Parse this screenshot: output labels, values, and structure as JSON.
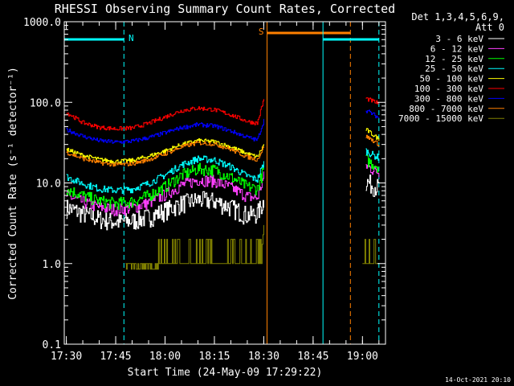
{
  "chart_data": {
    "type": "line",
    "title": "RHESSI Observing Summary Count Rates, Corrected",
    "xlabel": "Start Time (24-May-09 17:29:22)",
    "ylabel": "Corrected Count Rate (s⁻¹ detector⁻¹)",
    "x_scale": "time",
    "y_scale": "log",
    "xlim": [
      "17:29:22",
      "19:07:00"
    ],
    "ylim": [
      0.1,
      1000
    ],
    "x_ticks": [
      "17:30",
      "17:45",
      "18:00",
      "18:15",
      "18:30",
      "18:45",
      "19:00"
    ],
    "y_ticks": [
      "0.1",
      "1.0",
      "10.0",
      "100.0",
      "1000.0"
    ],
    "legend_title": [
      "Det 1,3,4,5,6,9,",
      "Att 0"
    ],
    "legend_position": "top-right outside",
    "grid": false,
    "footer": "14-Oct-2021 20:10",
    "flags": [
      {
        "label": "N",
        "kind": "night",
        "start": "17:29:22",
        "end": "17:47:30",
        "color": "#00ffff"
      },
      {
        "label": "S",
        "kind": "saa",
        "start": "18:31:00",
        "end": "18:56:20",
        "color": "#ff8000"
      },
      {
        "label": "",
        "kind": "night",
        "start": "18:48:00",
        "end": "19:05:00",
        "color": "#00ffff"
      }
    ],
    "series": [
      {
        "name": "3 - 6 keV",
        "color": "#ffffff",
        "seg1": {
          "t": [
            "17:30",
            "17:35",
            "17:40",
            "17:45",
            "17:50",
            "17:55",
            "18:00",
            "18:05",
            "18:10",
            "18:15",
            "18:20",
            "18:25",
            "18:28",
            "18:30"
          ],
          "v": [
            5.0,
            4.2,
            3.6,
            3.3,
            3.4,
            3.8,
            4.6,
            5.6,
            6.2,
            6.0,
            5.0,
            4.0,
            4.2,
            6.0
          ]
        },
        "seg2": {
          "t": [
            "19:01",
            "19:03",
            "19:05"
          ],
          "v": [
            10.5,
            9.5,
            8.8
          ]
        }
      },
      {
        "name": "6 - 12 keV",
        "color": "#ff40ff",
        "seg1": {
          "t": [
            "17:30",
            "17:35",
            "17:40",
            "17:45",
            "17:50",
            "17:55",
            "18:00",
            "18:05",
            "18:10",
            "18:15",
            "18:20",
            "18:25",
            "18:28",
            "18:30"
          ],
          "v": [
            7.0,
            5.8,
            5.0,
            4.7,
            4.9,
            5.7,
            7.2,
            9.4,
            11.0,
            10.6,
            8.8,
            6.8,
            6.5,
            12.0
          ]
        },
        "seg2": {
          "t": [
            "19:01",
            "19:03",
            "19:05"
          ],
          "v": [
            16.5,
            14.8,
            13.5
          ]
        }
      },
      {
        "name": "12 - 25 keV",
        "color": "#00ff00",
        "seg1": {
          "t": [
            "17:30",
            "17:35",
            "17:40",
            "17:45",
            "17:50",
            "17:55",
            "18:00",
            "18:05",
            "18:10",
            "18:15",
            "18:20",
            "18:25",
            "18:28",
            "18:30"
          ],
          "v": [
            8.5,
            7.0,
            6.0,
            5.6,
            5.9,
            7.0,
            9.0,
            12.5,
            15.0,
            14.5,
            11.8,
            9.0,
            8.5,
            15.0
          ]
        },
        "seg2": {
          "t": [
            "19:01",
            "19:03",
            "19:05"
          ],
          "v": [
            19.5,
            17.5,
            16.0
          ]
        }
      },
      {
        "name": "25 - 50 keV",
        "color": "#00ffff",
        "seg1": {
          "t": [
            "17:30",
            "17:35",
            "17:40",
            "17:45",
            "17:50",
            "17:55",
            "18:00",
            "18:05",
            "18:10",
            "18:15",
            "18:20",
            "18:25",
            "18:28",
            "18:30"
          ],
          "v": [
            12.0,
            9.8,
            8.5,
            8.1,
            8.4,
            9.9,
            12.6,
            16.8,
            20.0,
            19.3,
            15.8,
            12.2,
            11.0,
            18.0
          ]
        },
        "seg2": {
          "t": [
            "19:01",
            "19:03",
            "19:05"
          ],
          "v": [
            25.0,
            22.5,
            20.5
          ]
        }
      },
      {
        "name": "50 - 100 keV",
        "color": "#ffff00",
        "seg1": {
          "t": [
            "17:30",
            "17:35",
            "17:40",
            "17:45",
            "17:50",
            "17:55",
            "18:00",
            "18:05",
            "18:10",
            "18:15",
            "18:20",
            "18:25",
            "18:28",
            "18:30"
          ],
          "v": [
            26.0,
            22.0,
            19.5,
            18.5,
            19.0,
            21.5,
            25.0,
            30.0,
            33.5,
            32.5,
            28.0,
            23.0,
            21.0,
            30.0
          ]
        },
        "seg2": {
          "t": [
            "19:01",
            "19:03",
            "19:05"
          ],
          "v": [
            46.0,
            40.0,
            35.0
          ]
        }
      },
      {
        "name": "100 - 300 keV",
        "color": "#ff0000",
        "seg1": {
          "t": [
            "17:30",
            "17:35",
            "17:40",
            "17:45",
            "17:50",
            "17:55",
            "18:00",
            "18:05",
            "18:10",
            "18:15",
            "18:20",
            "18:25",
            "18:28",
            "18:30"
          ],
          "v": [
            75.0,
            56.0,
            49.0,
            47.0,
            48.0,
            55.0,
            66.0,
            79.0,
            85.0,
            81.0,
            70.0,
            58.0,
            55.0,
            110.0
          ]
        },
        "seg2": {
          "t": [
            "19:01",
            "19:03",
            "19:05"
          ],
          "v": [
            112.0,
            104.0,
            96.0
          ]
        }
      },
      {
        "name": "300 - 800 keV",
        "color": "#0000ff",
        "seg1": {
          "t": [
            "17:30",
            "17:35",
            "17:40",
            "17:45",
            "17:50",
            "17:55",
            "18:00",
            "18:05",
            "18:10",
            "18:15",
            "18:20",
            "18:25",
            "18:28",
            "18:30"
          ],
          "v": [
            46.0,
            38.0,
            33.5,
            32.0,
            33.0,
            36.5,
            42.0,
            48.5,
            53.0,
            51.0,
            44.0,
            37.0,
            34.0,
            60.0
          ]
        },
        "seg2": {
          "t": [
            "19:01",
            "19:03",
            "19:05"
          ],
          "v": [
            80.0,
            72.0,
            64.0
          ]
        }
      },
      {
        "name": "800 - 7000 keV",
        "color": "#ff8000",
        "seg1": {
          "t": [
            "17:30",
            "17:35",
            "17:40",
            "17:45",
            "17:50",
            "17:55",
            "18:00",
            "18:05",
            "18:10",
            "18:15",
            "18:20",
            "18:25",
            "18:28",
            "18:30"
          ],
          "v": [
            24.0,
            20.0,
            17.8,
            16.8,
            17.3,
            19.5,
            23.0,
            28.0,
            31.5,
            30.5,
            26.0,
            21.0,
            19.5,
            28.0
          ]
        },
        "seg2": {
          "t": [
            "19:01",
            "19:03",
            "19:05"
          ],
          "v": [
            38.0,
            34.0,
            30.0
          ]
        }
      },
      {
        "name": "7000 - 15000 keV",
        "color": "#808000",
        "seg1": {
          "t": [
            "17:48",
            "17:53",
            "17:58",
            "18:02",
            "18:04",
            "18:06",
            "18:08",
            "18:10",
            "18:12",
            "18:14",
            "18:16",
            "18:18",
            "18:20",
            "18:22",
            "18:25",
            "18:28",
            "18:29",
            "18:30"
          ],
          "v": [
            0.85,
            0.9,
            1.0,
            1.0,
            1.0,
            2.0,
            1.0,
            2.0,
            1.0,
            2.0,
            1.0,
            1.0,
            2.0,
            1.0,
            1.0,
            1.0,
            1.0,
            3.0
          ]
        },
        "seg2": {
          "t": [
            "19:00",
            "19:02",
            "19:04",
            "19:05"
          ],
          "v": [
            2.0,
            1.0,
            1.0,
            1.0
          ]
        }
      }
    ]
  }
}
